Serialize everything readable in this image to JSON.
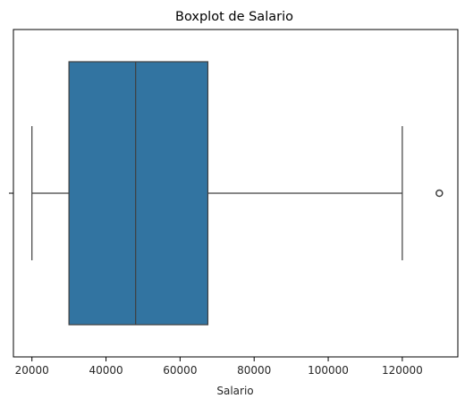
{
  "chart_data": {
    "type": "boxplot",
    "title": "Boxplot de Salario",
    "xlabel": "Salario",
    "ylabel": "",
    "xlim": [
      15000,
      135000
    ],
    "xticks": [
      20000,
      40000,
      60000,
      80000,
      100000,
      120000
    ],
    "xtick_labels": [
      "20000",
      "40000",
      "60000",
      "80000",
      "100000",
      "120000"
    ],
    "orientation": "horizontal",
    "box": {
      "whisker_low": 20000,
      "q1": 30000,
      "median": 48000,
      "q3": 67500,
      "whisker_high": 120000
    },
    "outliers": [
      130000
    ],
    "grid": false,
    "legend": "none",
    "colors": {
      "box_fill": "#3274a1",
      "line": "#3f3f3f",
      "axis": "#000000"
    }
  }
}
